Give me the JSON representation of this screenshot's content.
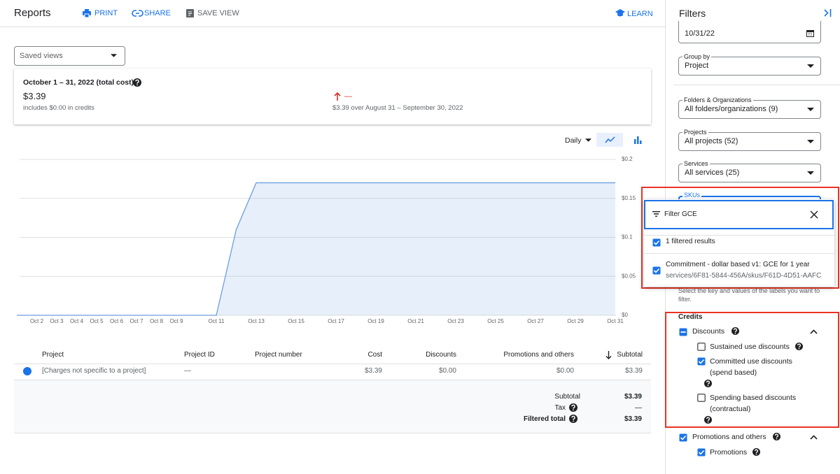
{
  "header": {
    "title": "Reports",
    "actions": [
      "PRINT",
      "SHARE",
      "SAVE VIEW"
    ],
    "learn": "LEARN"
  },
  "saved_views": "Saved views",
  "summary": {
    "period": "October 1 – 31, 2022 (total cost)",
    "total": "$3.39",
    "credits_note": "includes $0.00 in credits",
    "change": "—",
    "comparison": "$3.39 over August 31 – September 30, 2022"
  },
  "chart_controls": {
    "granularity": "Daily"
  },
  "chart_data": {
    "type": "area",
    "categories": [
      null,
      "Oct 2",
      "Oct 3",
      "Oct 4",
      "Oct 5",
      "Oct 6",
      "Oct 7",
      "Oct 8",
      "Oct 9",
      null,
      "Oct 11",
      null,
      "Oct 13",
      null,
      "Oct 15",
      null,
      "Oct 17",
      null,
      "Oct 19",
      null,
      "Oct 21",
      null,
      "Oct 23",
      null,
      "Oct 25",
      null,
      "Oct 27",
      null,
      "Oct 29",
      null,
      "Oct 31"
    ],
    "values": [
      0,
      0,
      0,
      0,
      0,
      0,
      0,
      0,
      0,
      0,
      0,
      0.11,
      0.17,
      0.17,
      0.17,
      0.17,
      0.17,
      0.17,
      0.17,
      0.17,
      0.17,
      0.17,
      0.17,
      0.17,
      0.17,
      0.17,
      0.17,
      0.17,
      0.17,
      0.17,
      0.17
    ],
    "color": "#6e9ee0",
    "ylim": [
      0,
      0.2
    ],
    "yticks": [
      {
        "value": 0,
        "label": "$0"
      },
      {
        "value": 0.05,
        "label": "$0.05"
      },
      {
        "value": 0.1,
        "label": "$0.1"
      },
      {
        "value": 0.15,
        "label": "$0.15"
      },
      {
        "value": 0.2,
        "label": "$0.2"
      }
    ],
    "grid": true
  },
  "table": {
    "columns": [
      "Project",
      "Project ID",
      "Project number",
      "Cost",
      "Discounts",
      "Promotions and others",
      "Subtotal"
    ],
    "rows": [
      [
        "[Charges not specific to a project]",
        "—",
        null,
        "$3.39",
        "$0.00",
        "$0.00",
        "$3.39"
      ]
    ]
  },
  "totals": [
    {
      "label": "Subtotal",
      "value": "$3.39"
    },
    {
      "label": "Tax",
      "value": "—"
    },
    {
      "label": "Filtered total",
      "value": "$3.39"
    }
  ],
  "filters": {
    "title": "Filters",
    "end_date": "10/31/22",
    "fields": [
      {
        "label": "Group by",
        "value": "Project"
      },
      {
        "label": "Folders & Organizations",
        "value": "All folders/organizations (9)"
      },
      {
        "label": "Projects",
        "value": "All projects (52)"
      },
      {
        "label": "Services",
        "value": "All services (25)"
      }
    ],
    "skus": {
      "label": "SKUs",
      "search": "Filter GCE",
      "select_all": {
        "text": "1 filtered results",
        "state": "checked"
      },
      "items": [
        {
          "name": "Commitment - dollar based v1: GCE for 1 year",
          "path": "services/6F81-5844-456A/skus/F61D-4D51-AAFC",
          "state": "checked"
        }
      ]
    },
    "labels_hint": "Select the key and values of the labels you want to filter.",
    "credits": {
      "title": "Credits",
      "groups": [
        {
          "name": "Discounts",
          "state": "indeterminate",
          "items": [
            {
              "name": "Sustained use discounts",
              "state": "unchecked"
            },
            {
              "name": "Committed use discounts (spend based)",
              "state": "checked"
            },
            {
              "name": "Spending based discounts (contractual)",
              "state": "unchecked"
            }
          ]
        },
        {
          "name": "Promotions and others",
          "state": "checked",
          "items": [
            {
              "name": "Promotions",
              "state": "checked"
            }
          ]
        }
      ]
    }
  }
}
